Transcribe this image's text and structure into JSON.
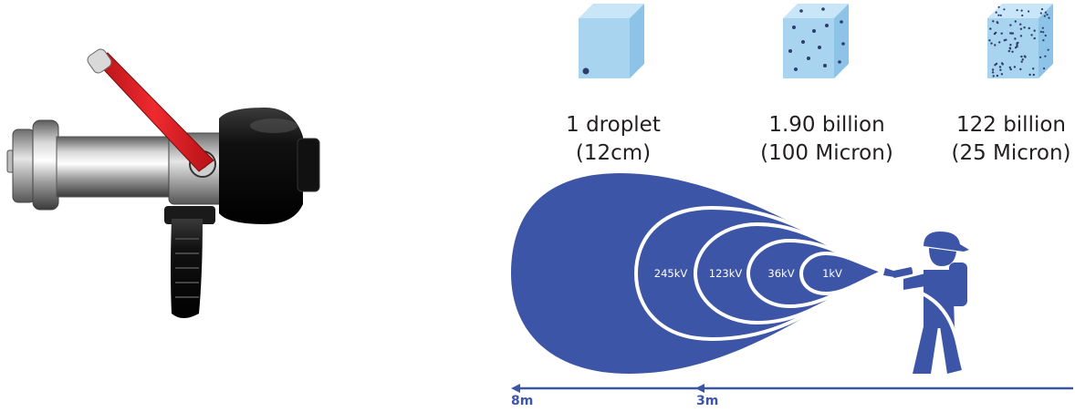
{
  "droplets": [
    {
      "count": "1 droplet",
      "size": "(12cm)"
    },
    {
      "count": "1.90 billion",
      "size": "(100 Micron)"
    },
    {
      "count": "122 billion",
      "size": "(25 Micron)"
    }
  ],
  "voltages": [
    "245kV",
    "123kV",
    "36kV",
    "1kV"
  ],
  "distances": [
    "8m",
    "3m"
  ],
  "colors": {
    "spray_blue": "#3d55a6",
    "cube_face": "#a9d4ef",
    "cube_top": "#c9e6f8",
    "cube_side": "#8dc3e6",
    "handle_red": "#e8262b"
  },
  "icons": [
    "nozzle-photo",
    "firefighter-icon",
    "arrow-left-icon"
  ]
}
